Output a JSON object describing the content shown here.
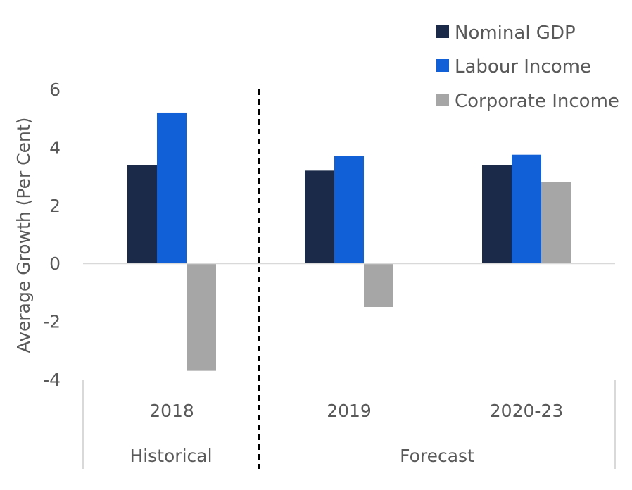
{
  "chart_data": {
    "type": "bar",
    "categories": [
      "2018",
      "2019",
      "2020-23"
    ],
    "groups": [
      "Historical",
      "Forecast"
    ],
    "series": [
      {
        "name": "Nominal GDP",
        "color": "#1b2a48",
        "values": [
          3.4,
          3.2,
          3.4
        ]
      },
      {
        "name": "Labour Income",
        "color": "#1160d8",
        "values": [
          5.2,
          3.7,
          3.75
        ]
      },
      {
        "name": "Corporate Income",
        "color": "#a6a6a6",
        "values": [
          -3.7,
          -1.5,
          2.8
        ]
      }
    ],
    "ylabel": "Average Growth (Per Cent)",
    "ylim": [
      -4,
      6
    ],
    "yticks": [
      -4,
      -2,
      0,
      2,
      4,
      6
    ],
    "legend_position": "top-right",
    "grid": false,
    "divider": "dashed line between Historical and Forecast"
  }
}
